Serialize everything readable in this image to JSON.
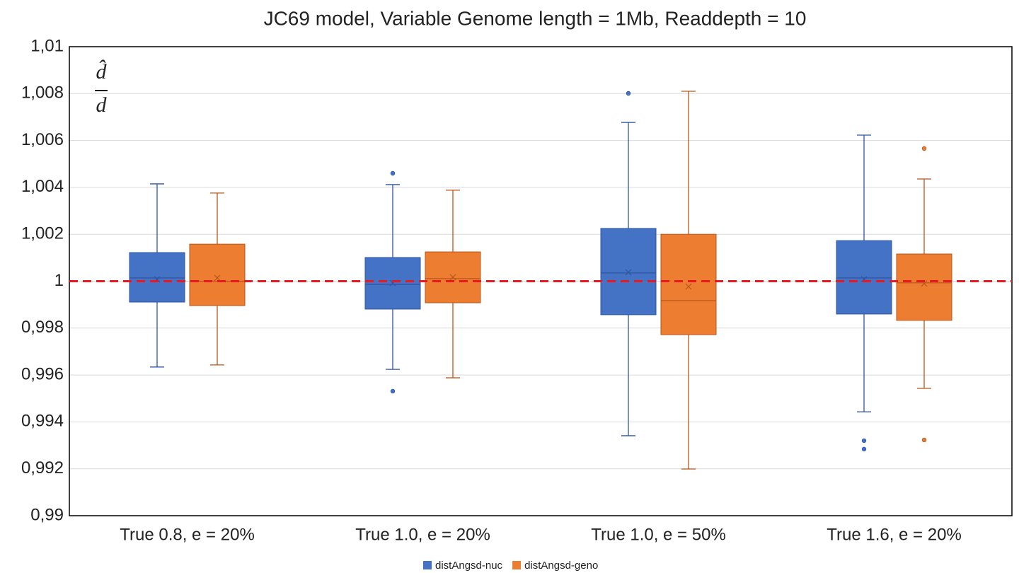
{
  "chart_data": {
    "type": "box",
    "title": "JC69 model, Variable Genome length = 1Mb, Readdepth = 10",
    "annotation": {
      "numerator": "d̂",
      "denominator": "d"
    },
    "categories": [
      "True 0.8, e = 20%",
      "True 1.0, e = 20%",
      "True 1.0, e = 50%",
      "True 1.6, e = 20%"
    ],
    "ylim": [
      0.99,
      1.01
    ],
    "yticks": [
      {
        "value": 0.99,
        "label": "0,99"
      },
      {
        "value": 0.992,
        "label": "0,992"
      },
      {
        "value": 0.994,
        "label": "0,994"
      },
      {
        "value": 0.996,
        "label": "0,996"
      },
      {
        "value": 0.998,
        "label": "0,998"
      },
      1,
      {
        "value": 1.002,
        "label": "1,002"
      },
      {
        "value": 1.004,
        "label": "1,004"
      },
      {
        "value": 1.006,
        "label": "1,006"
      },
      {
        "value": 1.008,
        "label": "1,008"
      },
      {
        "value": 1.01,
        "label": "1,01"
      }
    ],
    "grid": true,
    "reference_line": {
      "value": 1,
      "color": "#e8191f"
    },
    "series": [
      {
        "name": "distAngsd-nuc",
        "color": "#4472c4",
        "line_color": "#2f55a0",
        "boxes": [
          {
            "min": 0.99634,
            "q1": 0.99911,
            "median": 1.00014,
            "q3": 1.00122,
            "max": 1.00415,
            "mean": 1.00008,
            "outliers": []
          },
          {
            "min": 0.99624,
            "q1": 0.99881,
            "median": 0.99986,
            "q3": 1.00101,
            "max": 1.00412,
            "mean": 0.99992,
            "outliers": [
              1.0046,
              0.99531
            ]
          },
          {
            "min": 0.99341,
            "q1": 0.99857,
            "median": 1.00035,
            "q3": 1.00225,
            "max": 1.00677,
            "mean": 1.00038,
            "outliers": [
              1.00801
            ]
          },
          {
            "min": 0.99443,
            "q1": 0.9986,
            "median": 1.00014,
            "q3": 1.00173,
            "max": 1.00623,
            "mean": 1.00008,
            "outliers": [
              0.9932,
              0.99284
            ]
          }
        ]
      },
      {
        "name": "distAngsd-geno",
        "color": "#ed7d31",
        "line_color": "#b8561a",
        "boxes": [
          {
            "min": 0.99643,
            "q1": 0.99896,
            "median": 1.0,
            "q3": 1.00158,
            "max": 1.00376,
            "mean": 1.00014,
            "outliers": []
          },
          {
            "min": 0.99588,
            "q1": 0.99908,
            "median": 1.00011,
            "q3": 1.00125,
            "max": 1.00388,
            "mean": 1.00017,
            "outliers": []
          },
          {
            "min": 0.99199,
            "q1": 0.99772,
            "median": 0.99917,
            "q3": 1.002,
            "max": 1.0081,
            "mean": 0.99977,
            "outliers": []
          },
          {
            "min": 0.99543,
            "q1": 0.99833,
            "median": 0.99993,
            "q3": 1.00116,
            "max": 1.00436,
            "mean": 0.9999,
            "outliers": [
              1.00566,
              0.99323
            ]
          }
        ]
      }
    ]
  }
}
